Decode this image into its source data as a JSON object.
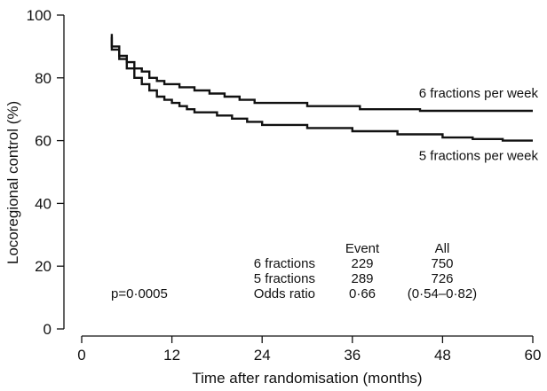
{
  "chart_data": {
    "type": "line",
    "xlabel": "Time after randomisation (months)",
    "ylabel": "Locoregional control (%)",
    "xlim": [
      0,
      60
    ],
    "ylim": [
      0,
      100
    ],
    "x_ticks": [
      0,
      12,
      24,
      36,
      48,
      60
    ],
    "y_ticks": [
      0,
      20,
      40,
      60,
      80,
      100
    ],
    "x_tick_labels": [
      "0",
      "12",
      "24",
      "36",
      "48",
      "60"
    ],
    "y_tick_labels": [
      "0",
      "20",
      "40",
      "60",
      "80",
      "100"
    ],
    "grid": false,
    "step": true,
    "series": [
      {
        "name": "6 fractions per week",
        "points": [
          [
            4,
            94
          ],
          [
            4,
            90
          ],
          [
            5,
            90
          ],
          [
            5,
            87
          ],
          [
            6,
            87
          ],
          [
            6,
            85
          ],
          [
            7,
            85
          ],
          [
            7,
            83
          ],
          [
            8,
            83
          ],
          [
            8,
            82
          ],
          [
            9,
            82
          ],
          [
            9,
            80
          ],
          [
            10,
            80
          ],
          [
            10,
            79
          ],
          [
            11,
            79
          ],
          [
            11,
            78
          ],
          [
            13,
            78
          ],
          [
            13,
            77
          ],
          [
            15,
            77
          ],
          [
            15,
            76
          ],
          [
            17,
            76
          ],
          [
            17,
            75
          ],
          [
            19,
            75
          ],
          [
            19,
            74
          ],
          [
            21,
            74
          ],
          [
            21,
            73
          ],
          [
            23,
            73
          ],
          [
            23,
            72
          ],
          [
            30,
            72
          ],
          [
            30,
            71
          ],
          [
            37,
            71
          ],
          [
            37,
            70
          ],
          [
            45,
            70
          ],
          [
            45,
            69.5
          ],
          [
            60,
            69.5
          ]
        ]
      },
      {
        "name": "5 fractions per week",
        "points": [
          [
            4,
            93
          ],
          [
            4,
            89
          ],
          [
            5,
            89
          ],
          [
            5,
            86
          ],
          [
            6,
            86
          ],
          [
            6,
            83
          ],
          [
            7,
            83
          ],
          [
            7,
            80
          ],
          [
            8,
            80
          ],
          [
            8,
            78
          ],
          [
            9,
            78
          ],
          [
            9,
            76
          ],
          [
            10,
            76
          ],
          [
            10,
            74
          ],
          [
            11,
            74
          ],
          [
            11,
            73
          ],
          [
            12,
            73
          ],
          [
            12,
            72
          ],
          [
            13,
            72
          ],
          [
            13,
            71
          ],
          [
            14,
            71
          ],
          [
            14,
            70
          ],
          [
            15,
            70
          ],
          [
            15,
            69
          ],
          [
            18,
            69
          ],
          [
            18,
            68
          ],
          [
            20,
            68
          ],
          [
            20,
            67
          ],
          [
            22,
            67
          ],
          [
            22,
            66
          ],
          [
            24,
            66
          ],
          [
            24,
            65
          ],
          [
            30,
            65
          ],
          [
            30,
            64
          ],
          [
            36,
            64
          ],
          [
            36,
            63
          ],
          [
            42,
            63
          ],
          [
            42,
            62
          ],
          [
            48,
            62
          ],
          [
            48,
            61
          ],
          [
            52,
            61
          ],
          [
            52,
            60.5
          ],
          [
            56,
            60.5
          ],
          [
            56,
            60
          ],
          [
            60,
            60
          ]
        ]
      }
    ],
    "annotations": {
      "p_value": "p=0·0005",
      "table": {
        "headers": [
          "",
          "Event",
          "All"
        ],
        "rows": [
          [
            "6 fractions",
            "229",
            "750"
          ],
          [
            "5 fractions",
            "289",
            "726"
          ],
          [
            "Odds ratio",
            "0·66",
            "(0·54–0·82)"
          ]
        ]
      }
    }
  }
}
